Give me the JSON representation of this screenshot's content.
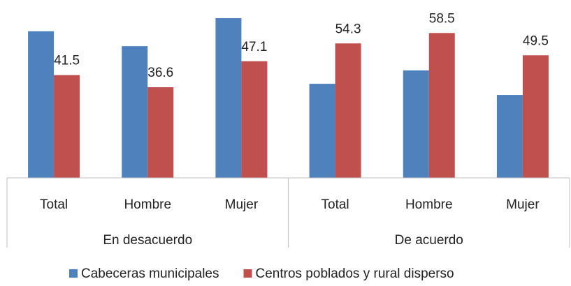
{
  "chart_data": {
    "type": "bar",
    "groups": [
      "En desacuerdo",
      "De acuerdo"
    ],
    "categories": [
      "Total",
      "Hombre",
      "Mujer",
      "Total",
      "Hombre",
      "Mujer"
    ],
    "series": [
      {
        "name": "Cabeceras municipales",
        "color": "#4f81bd",
        "values": [
          59.2,
          53.2,
          64.5,
          38.0,
          43.4,
          33.5
        ],
        "show_labels": false
      },
      {
        "name": "Centros poblados y rural disperso",
        "color": "#c0504d",
        "values": [
          41.5,
          36.6,
          47.1,
          54.3,
          58.5,
          49.5
        ],
        "show_labels": true
      }
    ],
    "ylim": [
      0,
      70
    ],
    "legend": "bottom"
  }
}
